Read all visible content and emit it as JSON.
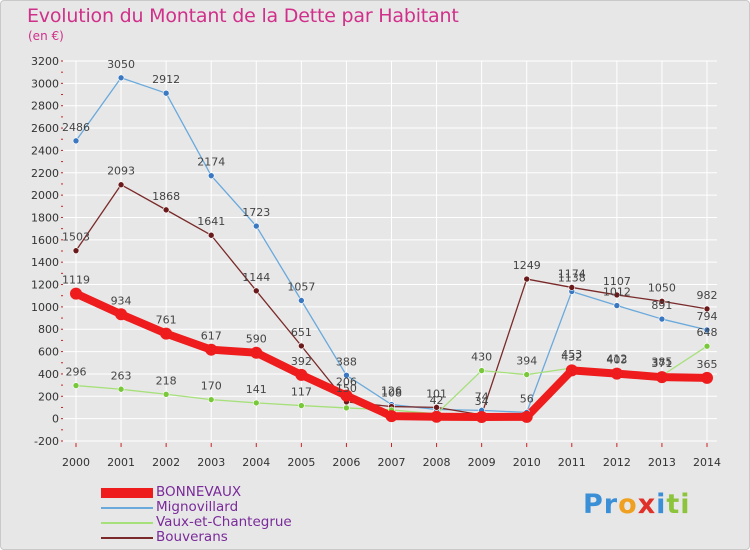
{
  "header": {
    "title": "Evolution du Montant de la Dette par Habitant",
    "subtitle": "(en €)"
  },
  "colors": {
    "title": "#d0308a",
    "legend_text": "#7a2a9a",
    "axis_text": "#333333",
    "grid": "#ffffff",
    "plot_bg": "#e7e7e7"
  },
  "logo": {
    "text": "Proxiti",
    "letters": [
      {
        "ch": "P",
        "color": "#3a8fd6"
      },
      {
        "ch": "r",
        "color": "#3a8fd6"
      },
      {
        "ch": "o",
        "color": "#f0a020"
      },
      {
        "ch": "x",
        "color": "#e0302a"
      },
      {
        "ch": "i",
        "color": "#3a8fd6"
      },
      {
        "ch": "t",
        "color": "#8cc43c"
      },
      {
        "ch": "i",
        "color": "#8cc43c"
      }
    ]
  },
  "chart_data": {
    "type": "line",
    "title": "Evolution du Montant de la Dette par Habitant",
    "subtitle": "(en €)",
    "x": [
      "2000",
      "2001",
      "2002",
      "2003",
      "2004",
      "2005",
      "2006",
      "2007",
      "2008",
      "2009",
      "2010",
      "2011",
      "2012",
      "2013",
      "2014"
    ],
    "ylim": [
      -200,
      3200
    ],
    "yticks": [
      "-200",
      "0",
      "200",
      "400",
      "600",
      "800",
      "1000",
      "1200",
      "1400",
      "1600",
      "1800",
      "2000",
      "2200",
      "2400",
      "2600",
      "2800",
      "3000",
      "3200"
    ],
    "grid": true,
    "legend_position": "bottom-left",
    "series": [
      {
        "name": "BONNEVAUX",
        "color": "#ee1c1c",
        "marker_color": "#ee1c1c",
        "width": 8,
        "values": [
          1119,
          934,
          761,
          617,
          590,
          392,
          206,
          23,
          17,
          15,
          16,
          432,
          403,
          371,
          365
        ],
        "labels": [
          "1119",
          "934",
          "761",
          "617",
          "590",
          "392",
          "206",
          "",
          "",
          "",
          "",
          "432",
          "403",
          "371",
          "365"
        ]
      },
      {
        "name": "Mignovillard",
        "color": "#6aa9dc",
        "marker_color": "#3a78c2",
        "width": 1.3,
        "values": [
          2486,
          3050,
          2912,
          2174,
          1723,
          1057,
          388,
          126,
          82,
          74,
          56,
          1138,
          1012,
          891,
          794
        ],
        "labels": [
          "2486",
          "3050",
          "2912",
          "2174",
          "1723",
          "1057",
          "388",
          "126",
          "",
          "74",
          "56",
          "1138",
          "1012",
          "891",
          "794"
        ]
      },
      {
        "name": "Vaux-et-Chantegrue",
        "color": "#a6e07a",
        "marker_color": "#78c83a",
        "width": 1.3,
        "values": [
          296,
          263,
          218,
          170,
          141,
          117,
          96,
          78,
          42,
          430,
          394,
          453,
          412,
          385,
          648
        ],
        "labels": [
          "296",
          "263",
          "218",
          "170",
          "141",
          "117",
          "",
          "",
          "42",
          "430",
          "394",
          "453",
          "412",
          "385",
          "648"
        ]
      },
      {
        "name": "Bouverans",
        "color": "#7a2a2a",
        "marker_color": "#6a1a1a",
        "width": 1.3,
        "values": [
          1503,
          2093,
          1868,
          1641,
          1144,
          651,
          150,
          108,
          101,
          34,
          1249,
          1174,
          1107,
          1050,
          982
        ],
        "labels": [
          "1503",
          "2093",
          "1868",
          "1641",
          "1144",
          "651",
          "150",
          "108",
          "101",
          "34",
          "1249",
          "1174",
          "1107",
          "1050",
          "982"
        ]
      }
    ]
  }
}
